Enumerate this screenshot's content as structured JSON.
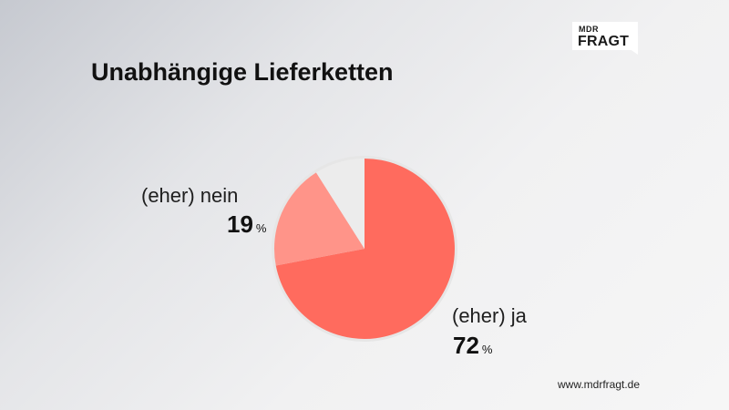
{
  "brand": {
    "top": "MDR",
    "bottom": "FRAGT"
  },
  "footer": "www.mdrfragt.de",
  "chart_data": {
    "type": "pie",
    "title": "Unabhängige Lieferketten",
    "unit": "%",
    "slices": [
      {
        "label": "(eher) ja",
        "value": 72,
        "color": "#ff6b5e"
      },
      {
        "label": "(eher) nein",
        "value": 19,
        "color": "#ff9489"
      },
      {
        "label": "",
        "value": 9,
        "color": "#ececec"
      }
    ]
  }
}
